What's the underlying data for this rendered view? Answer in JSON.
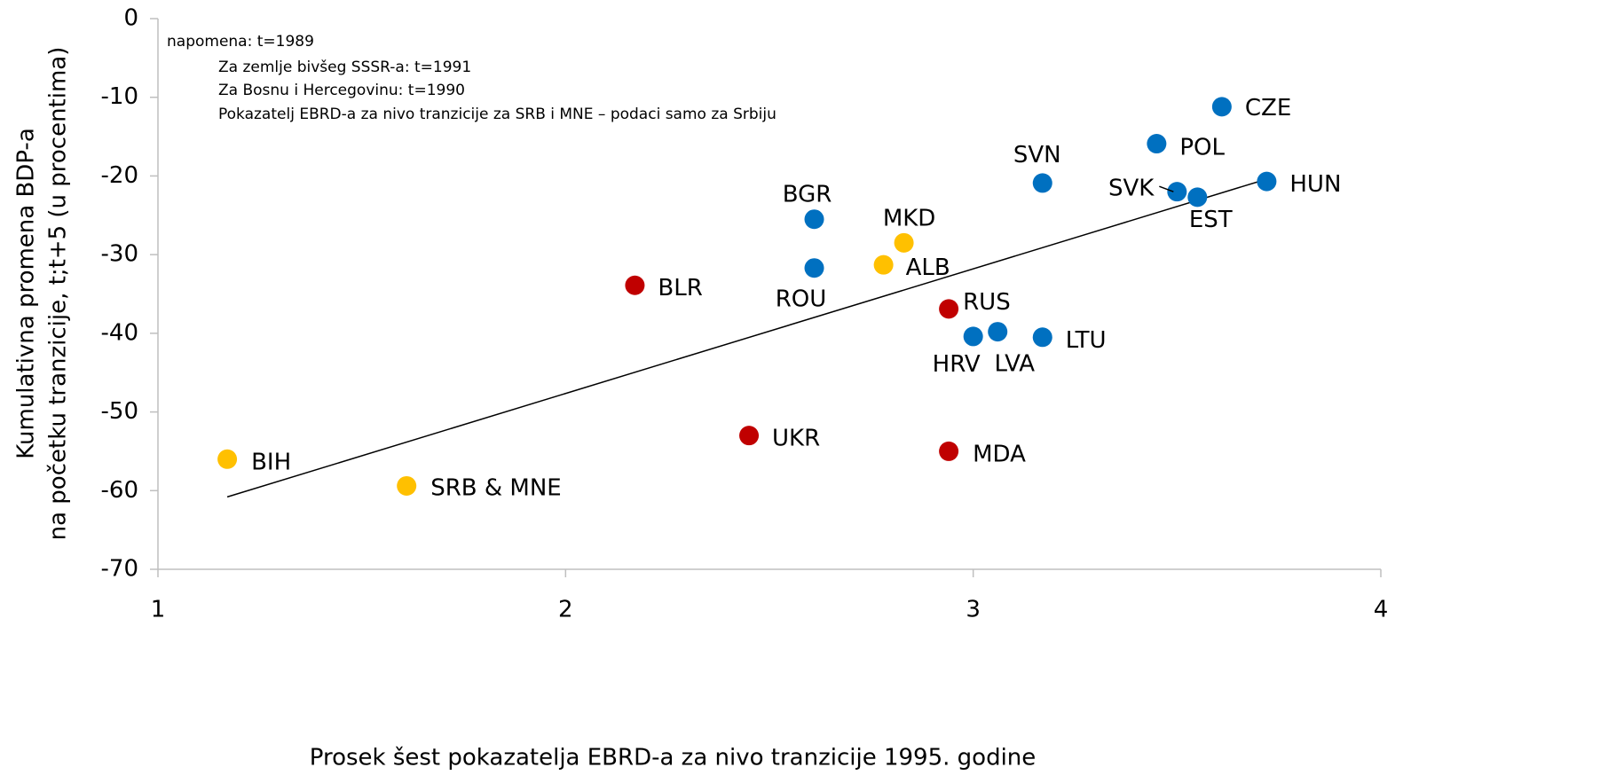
{
  "chart_data": {
    "type": "scatter",
    "x_label": "Prosek šest pokazatelja EBRD-a za nivo tranzicije 1995. godine",
    "y_label": [
      "Kumulativna promena BDP-a",
      "na početku tranzicije, t;t+5 (u procentima)"
    ],
    "annotations": [
      "napomena: t=1989",
      "Za zemlje bivšeg SSSR-a: t=1991",
      "Za Bosnu i Hercegovinu: t=1990",
      "Pokazatelj EBRD-a za nivo tranzicije za SRB i MNE – podaci samo za Srbiju"
    ],
    "xlim": [
      1,
      4
    ],
    "xticks": [
      1,
      2,
      3,
      4
    ],
    "ylim": [
      -70,
      0
    ],
    "yticks": [
      -70,
      -60,
      -50,
      -40,
      -30,
      -20,
      -10,
      0
    ],
    "trendline": {
      "x": [
        1.17,
        3.72
      ],
      "y": [
        -60.8,
        -20.4
      ],
      "color": "#000000"
    },
    "points": [
      {
        "label": "BIH",
        "x": 1.17,
        "y": -56,
        "color": "#ffc000"
      },
      {
        "label": "SRB & MNE",
        "x": 1.61,
        "y": -59.4,
        "color": "#ffc000"
      },
      {
        "label": "BLR",
        "x": 2.17,
        "y": -33.9,
        "color": "#c00000"
      },
      {
        "label": "UKR",
        "x": 2.45,
        "y": -53,
        "color": "#c00000"
      },
      {
        "label": "MDA",
        "x": 2.94,
        "y": -55,
        "color": "#c00000"
      },
      {
        "label": "RUS",
        "x": 2.94,
        "y": -36.9,
        "color": "#c00000"
      },
      {
        "label": "MKD",
        "x": 2.83,
        "y": -28.5,
        "color": "#ffc000"
      },
      {
        "label": "ALB",
        "x": 2.78,
        "y": -31.3,
        "color": "#ffc000"
      },
      {
        "label": "BGR",
        "x": 2.61,
        "y": -25.5,
        "color": "#0070c0"
      },
      {
        "label": "ROU",
        "x": 2.61,
        "y": -31.7,
        "color": "#0070c0"
      },
      {
        "label": "HRV",
        "x": 3.0,
        "y": -40.4,
        "color": "#0070c0"
      },
      {
        "label": "LVA",
        "x": 3.06,
        "y": -39.8,
        "color": "#0070c0"
      },
      {
        "label": "LTU",
        "x": 3.17,
        "y": -40.5,
        "color": "#0070c0"
      },
      {
        "label": "SVN",
        "x": 3.17,
        "y": -20.9,
        "color": "#0070c0"
      },
      {
        "label": "POL",
        "x": 3.45,
        "y": -15.9,
        "color": "#0070c0"
      },
      {
        "label": "CZE",
        "x": 3.61,
        "y": -11.2,
        "color": "#0070c0"
      },
      {
        "label": "SVK",
        "x": 3.5,
        "y": -22.0,
        "color": "#0070c0"
      },
      {
        "label": "EST",
        "x": 3.55,
        "y": -22.7,
        "color": "#0070c0"
      },
      {
        "label": "HUN",
        "x": 3.72,
        "y": -20.7,
        "color": "#0070c0"
      }
    ]
  }
}
